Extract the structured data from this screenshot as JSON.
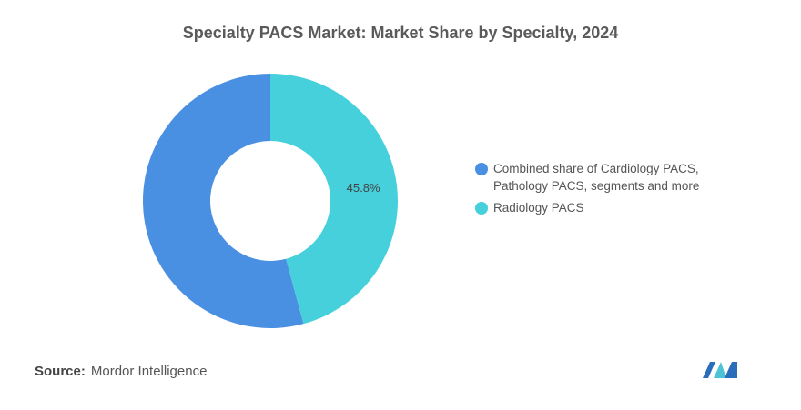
{
  "chart_data": {
    "type": "pie",
    "title": "Specialty PACS Market: Market Share by Specialty, 2024",
    "categories": [
      "Combined share of Cardiology PACS, Pathology PACS, segments and more",
      "Radiology PACS"
    ],
    "values": [
      54.2,
      45.8
    ],
    "value_labels": [
      null,
      "45.8%"
    ],
    "colors": [
      "#4a90e2",
      "#45d0dc"
    ],
    "donut": true,
    "legend": "right"
  },
  "footer": {
    "source_label": "Source:",
    "source": "Mordor Intelligence"
  }
}
